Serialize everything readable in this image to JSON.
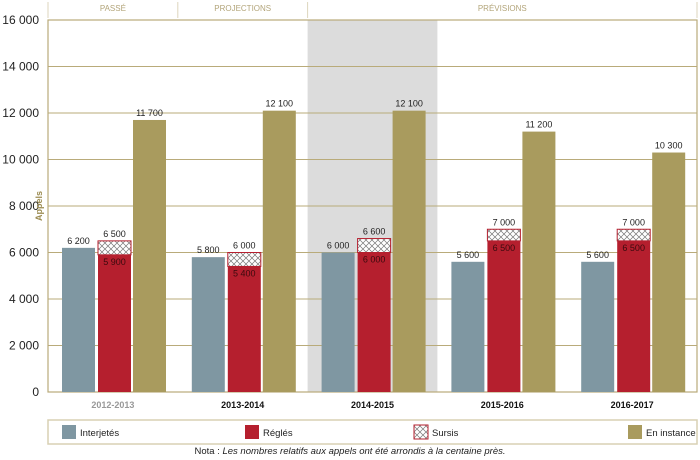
{
  "chart_data": {
    "type": "bar",
    "ylabel": "Appels",
    "ylim": [
      0,
      16000
    ],
    "yticks": [
      0,
      2000,
      4000,
      6000,
      8000,
      10000,
      12000,
      14000,
      16000
    ],
    "ytick_labels": [
      "0",
      "2 000",
      "4 000",
      "6 000",
      "8 000",
      "10 000",
      "12 000",
      "14 000",
      "16 000"
    ],
    "grid": true,
    "categories": [
      "2012-2013",
      "2013-2014",
      "2014-2015",
      "2015-2016",
      "2016-2017"
    ],
    "periods": [
      {
        "label": "PASSÉ",
        "categories": [
          "2012-2013"
        ]
      },
      {
        "label": "PROJECTIONS",
        "categories": [
          "2013-2014"
        ]
      },
      {
        "label": "PRÉVISIONS",
        "categories": [
          "2014-2015",
          "2015-2016",
          "2016-2017"
        ]
      }
    ],
    "highlighted_category": "2014-2015",
    "series": [
      {
        "name": "Interjetés",
        "color": "#7f97a2",
        "values": [
          6200,
          5800,
          6000,
          5600,
          5600
        ],
        "labels": [
          "6 200",
          "5 800",
          "6 000",
          "5 600",
          "5 600"
        ]
      },
      {
        "name": "Réglés",
        "color": "#b51f2e",
        "values": [
          5900,
          5400,
          6000,
          6500,
          6500
        ],
        "labels": [
          "5 900",
          "5 400",
          "6 000",
          "6 500",
          "6 500"
        ]
      },
      {
        "name": "Sursis",
        "pattern": "crosshatch",
        "stacked_on": "Réglés",
        "totals": [
          6500,
          6000,
          6600,
          7000,
          7000
        ],
        "labels": [
          "6 500",
          "6 000",
          "6 600",
          "7 000",
          "7 000"
        ]
      },
      {
        "name": "En instance",
        "color": "#a99b5e",
        "values": [
          11700,
          12100,
          12100,
          11200,
          10300
        ],
        "labels": [
          "11 700",
          "12 100",
          "12 100",
          "11 200",
          "10 300"
        ]
      }
    ],
    "legend_position": "bottom",
    "note_label": "Nota :",
    "note_text": "Les nombres relatifs aux appels ont été arrondis à la centaine près."
  }
}
